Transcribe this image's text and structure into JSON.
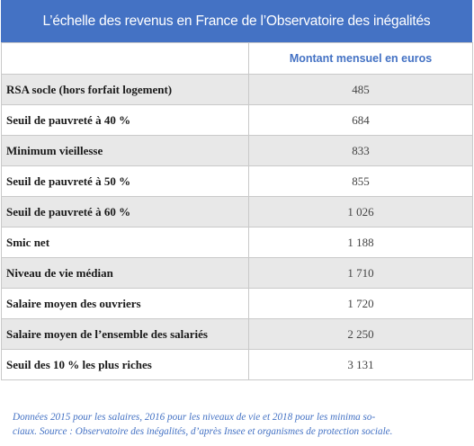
{
  "chart_data": {
    "type": "table",
    "title": "L’échelle des revenus en France de l’Observatoire des inégalités",
    "columns": [
      "",
      "Montant mensuel en euros"
    ],
    "rows": [
      {
        "label": "RSA socle (hors forfait logement)",
        "value": "485"
      },
      {
        "label": "Seuil de pauvreté à 40 %",
        "value": "684"
      },
      {
        "label": "Minimum vieillesse",
        "value": "833"
      },
      {
        "label": "Seuil de pauvreté à 50 %",
        "value": "855"
      },
      {
        "label": "Seuil de pauvreté à 60 %",
        "value": "1 026"
      },
      {
        "label": "Smic net",
        "value": "1 188"
      },
      {
        "label": "Niveau de vie médian",
        "value": "1 710"
      },
      {
        "label": "Salaire moyen des ouvriers",
        "value": "1 720"
      },
      {
        "label": "Salaire moyen de l’ensemble des salariés",
        "value": "2 250"
      },
      {
        "label": "Seuil des 10 % les plus riches",
        "value": "3 131"
      }
    ],
    "footnote_line1": "Données 2015 pour les salaires, 2016 pour les niveaux de vie et 2018 pour les minima so-",
    "footnote_line2": "ciaux. Source : Observatoire des inégalités, d’après Insee et organismes de protection sociale."
  },
  "colors": {
    "title_background": "#4472c4",
    "header_text": "#4472c4",
    "row_shade": "#e8e8e8",
    "border": "#c9c9c9",
    "footnote_text": "#4472c4"
  }
}
